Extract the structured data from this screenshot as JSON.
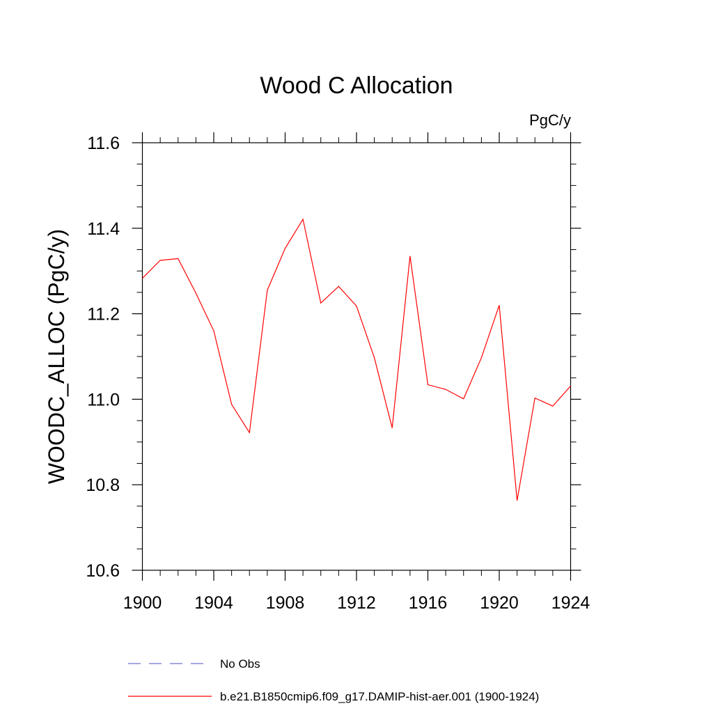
{
  "chart_data": {
    "type": "line",
    "title": "Wood C Allocation",
    "units_label": "PgC/y",
    "xlabel": "",
    "ylabel": "WOODC_ALLOC  (PgC/y)",
    "xlim": [
      1900,
      1924
    ],
    "ylim": [
      10.6,
      11.6
    ],
    "x_ticks": [
      1900,
      1904,
      1908,
      1912,
      1916,
      1920,
      1924
    ],
    "x_tick_labels": [
      "1900",
      "1904",
      "1908",
      "1912",
      "1916",
      "1920",
      "1924"
    ],
    "y_ticks": [
      10.6,
      10.8,
      11.0,
      11.2,
      11.4,
      11.6
    ],
    "y_tick_labels": [
      "10.6",
      "10.8",
      "11.0",
      "11.2",
      "11.4",
      "11.6"
    ],
    "grid": false,
    "legend_position": "bottom",
    "series": [
      {
        "name": "No Obs",
        "color": "#6f6fcf",
        "dash": "dashed",
        "x": [],
        "y": []
      },
      {
        "name": "b.e21.B1850cmip6.f09_g17.DAMIP-hist-aer.001 (1900-1924)",
        "color": "#ff0000",
        "dash": "solid",
        "x": [
          1900,
          1901,
          1902,
          1903,
          1904,
          1905,
          1906,
          1907,
          1908,
          1909,
          1910,
          1911,
          1912,
          1913,
          1914,
          1915,
          1916,
          1917,
          1918,
          1919,
          1920,
          1921,
          1922,
          1923,
          1924
        ],
        "y": [
          11.283,
          11.325,
          11.329,
          11.248,
          11.16,
          10.988,
          10.922,
          11.255,
          11.353,
          11.421,
          11.225,
          11.264,
          11.218,
          11.097,
          10.933,
          11.335,
          11.034,
          11.023,
          11.001,
          11.097,
          11.22,
          10.763,
          11.003,
          10.984,
          11.031
        ]
      }
    ]
  }
}
